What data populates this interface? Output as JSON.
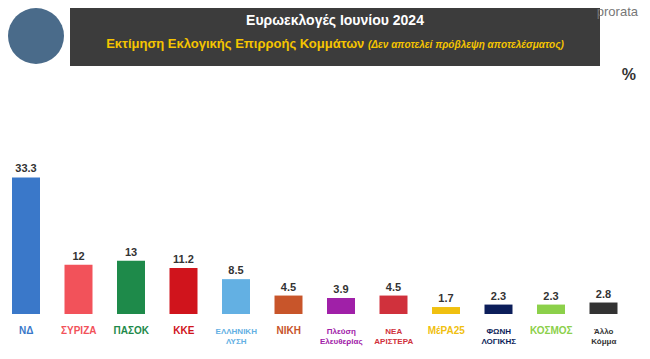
{
  "chart_data": {
    "type": "bar",
    "title": "Ευρωεκλογές Ιουνίου 2024",
    "subtitle": "Εκτίμηση Εκλογικής Επιρροής Κομμάτων",
    "annotations": [
      "(Δεν αποτελεί πρόβλεψη αποτελέσματος)",
      "prorata"
    ],
    "ylabel": "%",
    "categories": [
      "ΝΔ",
      "ΣΥΡΙΖΑ",
      "ΠΑΣΟΚ",
      "ΚΚΕ",
      "ΕΛΛΗΝΙΚΗ ΛΥΣΗ",
      "ΝΙΚΗ",
      "Πλεύση Ελευθερίας",
      "ΝΕΑ ΑΡΙΣΤΕΡΑ",
      "ΜέΡΑ25",
      "ΦΩΝΗ ΛΟΓΙΚΗΣ",
      "ΚΟΣΜΟΣ",
      "Άλλο Κόμμα"
    ],
    "values": [
      33.3,
      12,
      13,
      11.2,
      8.5,
      4.5,
      3.9,
      4.5,
      1.7,
      2.3,
      2.3,
      2.8
    ],
    "colors": [
      "#3a78c9",
      "#f2525a",
      "#1e8a4a",
      "#d0141c",
      "#63b0e3",
      "#c8552a",
      "#a020a8",
      "#d0313c",
      "#f0c010",
      "#0c1e5a",
      "#8cd04a",
      "#333333"
    ],
    "ylim": [
      0,
      40
    ],
    "data_labels": true,
    "tick_labels": "x",
    "grid": false
  }
}
